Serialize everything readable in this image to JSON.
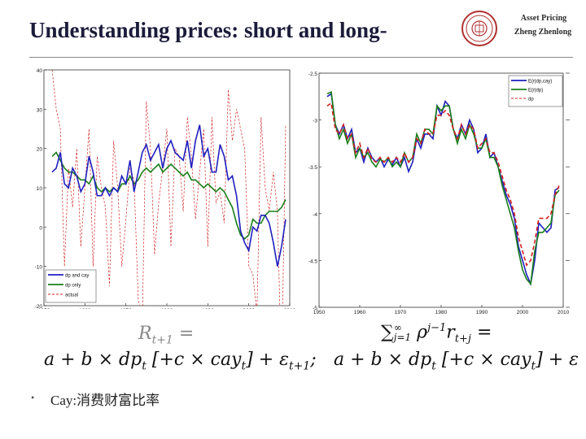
{
  "slide": {
    "title": "Understanding prices: short and long-",
    "brand_line1": "Asset Pricing",
    "brand_line2": "Zheng Zhenlong",
    "bullet": "Cay:消费财富比率"
  },
  "formulas": {
    "left_lhs": "R",
    "left_lhs_sub": "t+1",
    "left_eq": "=",
    "left_rhs_main": "a + b × dp",
    "left_rhs_sub": "t",
    "left_bracket": "[+c × cay",
    "left_bracket_sub": "t",
    "left_bracket_close": "]",
    "left_tail": "+ ε",
    "left_tail_sub": "t+1",
    "left_tail_end": ";",
    "right_sum": "∑",
    "right_sum_sup": "∞",
    "right_sum_sub": "j=1",
    "right_rho": "ρ",
    "right_rho_sup": "j−1",
    "right_r": "r",
    "right_r_sub": "t+j",
    "right_eq": "=",
    "right_rhs_main": "a + b × dp",
    "right_rhs_sub": "t",
    "right_bracket": "[+c × cay",
    "right_bracket_sub": "t",
    "right_bracket_close": "]",
    "right_tail": "+ ε"
  },
  "colors": {
    "blue": "#1f1fbf",
    "green": "#1a7f1a",
    "red": "#d42020"
  },
  "chart_data": [
    {
      "type": "line",
      "title": "",
      "xlabel": "",
      "ylabel": "",
      "xlim": [
        1950,
        2010
      ],
      "ylim": [
        -20,
        40
      ],
      "x_ticks": [
        1950,
        1960,
        1970,
        1980,
        1990,
        2000,
        2010
      ],
      "y_ticks": [
        40,
        30,
        20,
        10,
        0,
        -10,
        -20
      ],
      "y_tick_labels": [
        "40",
        "30",
        "20",
        "10",
        "0",
        "-10",
        "-20"
      ],
      "legend_position": "bottom-left",
      "series": [
        {
          "name": "dp and cay",
          "color": "#1f1fbf",
          "style": "solid",
          "x": [
            1952,
            1953,
            1954,
            1955,
            1956,
            1957,
            1958,
            1959,
            1960,
            1961,
            1962,
            1963,
            1964,
            1965,
            1966,
            1967,
            1968,
            1969,
            1970,
            1971,
            1972,
            1973,
            1974,
            1975,
            1976,
            1977,
            1978,
            1979,
            1980,
            1981,
            1982,
            1983,
            1984,
            1985,
            1986,
            1987,
            1988,
            1989,
            1990,
            1991,
            1992,
            1993,
            1994,
            1995,
            1996,
            1997,
            1998,
            1999,
            2000,
            2001,
            2002,
            2003,
            2004,
            2005,
            2006,
            2007,
            2008,
            2009
          ],
          "y": [
            14,
            15,
            19,
            11,
            10,
            15,
            13,
            9,
            11,
            18,
            14,
            8,
            8,
            10,
            8,
            10,
            9,
            13,
            11,
            17,
            9,
            14,
            19,
            21,
            17,
            19,
            21,
            15,
            20,
            22,
            19,
            18,
            17,
            22,
            15,
            22,
            26,
            18,
            20,
            14,
            14,
            21,
            18,
            12,
            13,
            8,
            -1,
            -4,
            -6,
            0,
            -1,
            3,
            3,
            1,
            -4,
            -10,
            -5,
            2
          ]
        },
        {
          "name": "dp only",
          "color": "#1a7f1a",
          "style": "solid",
          "x": [
            1952,
            1953,
            1954,
            1955,
            1956,
            1957,
            1958,
            1959,
            1960,
            1961,
            1962,
            1963,
            1964,
            1965,
            1966,
            1967,
            1968,
            1969,
            1970,
            1971,
            1972,
            1973,
            1974,
            1975,
            1976,
            1977,
            1978,
            1979,
            1980,
            1981,
            1982,
            1983,
            1984,
            1985,
            1986,
            1987,
            1988,
            1989,
            1990,
            1991,
            1992,
            1993,
            1994,
            1995,
            1996,
            1997,
            1998,
            1999,
            2000,
            2001,
            2002,
            2003,
            2004,
            2005,
            2006,
            2007,
            2008,
            2009
          ],
          "y": [
            18,
            19,
            17,
            15,
            14,
            14,
            13,
            12,
            12,
            11,
            13,
            10,
            9,
            10,
            9,
            10,
            9,
            11,
            11,
            13,
            11,
            12,
            14,
            15,
            14,
            15,
            16,
            14,
            15,
            16,
            15,
            14,
            13,
            14,
            12,
            12,
            11,
            10,
            11,
            10,
            9,
            10,
            9,
            7,
            5,
            1,
            -2,
            -3,
            -2,
            2,
            1,
            1,
            3,
            4,
            4,
            4,
            5,
            7
          ]
        },
        {
          "name": "actual",
          "color": "#d42020",
          "style": "dashed",
          "x": [
            1952,
            1953,
            1954,
            1955,
            1956,
            1957,
            1958,
            1959,
            1960,
            1961,
            1962,
            1963,
            1964,
            1965,
            1966,
            1967,
            1968,
            1969,
            1970,
            1971,
            1972,
            1973,
            1974,
            1975,
            1976,
            1977,
            1978,
            1979,
            1980,
            1981,
            1982,
            1983,
            1984,
            1985,
            1986,
            1987,
            1988,
            1989,
            1990,
            1991,
            1992,
            1993,
            1994,
            1995,
            1996,
            1997,
            1998,
            1999,
            2000,
            2001,
            2002,
            2003,
            2004,
            2005,
            2006,
            2007,
            2008,
            2009
          ],
          "y": [
            40,
            30,
            25,
            -10,
            15,
            5,
            20,
            -5,
            10,
            25,
            -10,
            18,
            10,
            5,
            -15,
            22,
            10,
            -10,
            2,
            15,
            12,
            -18,
            -25,
            32,
            20,
            -7,
            6,
            15,
            25,
            -5,
            20,
            18,
            4,
            28,
            18,
            2,
            14,
            25,
            -5,
            28,
            6,
            9,
            1,
            35,
            22,
            30,
            25,
            20,
            -10,
            -12,
            -22,
            28,
            10,
            4,
            14,
            4,
            -38,
            26
          ]
        }
      ]
    },
    {
      "type": "line",
      "title": "",
      "xlabel": "",
      "ylabel": "",
      "xlim": [
        1950,
        2010
      ],
      "ylim": [
        -5,
        -2.5
      ],
      "x_ticks": [
        1950,
        1960,
        1970,
        1980,
        1990,
        2000,
        2010
      ],
      "y_ticks": [
        -2.5,
        -3,
        -3.5,
        -4,
        -4.5,
        -5
      ],
      "y_tick_labels": [
        "-2.5",
        "-3",
        "-3.5",
        "-4",
        "-4.5",
        "-5"
      ],
      "legend_position": "top-right",
      "series": [
        {
          "name": "E(r|dp,cay)",
          "color": "#1f1fbf",
          "style": "solid",
          "x": [
            1952,
            1953,
            1954,
            1955,
            1956,
            1957,
            1958,
            1959,
            1960,
            1961,
            1962,
            1963,
            1964,
            1965,
            1966,
            1967,
            1968,
            1969,
            1970,
            1971,
            1972,
            1973,
            1974,
            1975,
            1976,
            1977,
            1978,
            1979,
            1980,
            1981,
            1982,
            1983,
            1984,
            1985,
            1986,
            1987,
            1988,
            1989,
            1990,
            1991,
            1992,
            1993,
            1994,
            1995,
            1996,
            1997,
            1998,
            1999,
            2000,
            2001,
            2002,
            2003,
            2004,
            2005,
            2006,
            2007,
            2008,
            2009
          ],
          "y": [
            -2.75,
            -2.72,
            -3.05,
            -3.15,
            -3.05,
            -3.2,
            -3.1,
            -3.35,
            -3.3,
            -3.45,
            -3.3,
            -3.4,
            -3.45,
            -3.4,
            -3.5,
            -3.42,
            -3.48,
            -3.4,
            -3.5,
            -3.4,
            -3.55,
            -3.45,
            -3.2,
            -3.3,
            -3.15,
            -3.15,
            -3.2,
            -2.85,
            -2.95,
            -2.8,
            -2.85,
            -3.1,
            -3.2,
            -3.05,
            -3.15,
            -3.0,
            -3.1,
            -3.35,
            -3.3,
            -3.15,
            -3.4,
            -3.35,
            -3.5,
            -3.65,
            -3.8,
            -3.9,
            -4.05,
            -4.35,
            -4.5,
            -4.65,
            -4.75,
            -4.5,
            -4.1,
            -4.15,
            -4.2,
            -4.15,
            -3.75,
            -3.72
          ]
        },
        {
          "name": "E(r|dp)",
          "color": "#1a7f1a",
          "style": "solid",
          "x": [
            1952,
            1953,
            1954,
            1955,
            1956,
            1957,
            1958,
            1959,
            1960,
            1961,
            1962,
            1963,
            1964,
            1965,
            1966,
            1967,
            1968,
            1969,
            1970,
            1971,
            1972,
            1973,
            1974,
            1975,
            1976,
            1977,
            1978,
            1979,
            1980,
            1981,
            1982,
            1983,
            1984,
            1985,
            1986,
            1987,
            1988,
            1989,
            1990,
            1991,
            1992,
            1993,
            1994,
            1995,
            1996,
            1997,
            1998,
            1999,
            2000,
            2001,
            2002,
            2003,
            2004,
            2005,
            2006,
            2007,
            2008,
            2009
          ],
          "y": [
            -2.72,
            -2.7,
            -3.05,
            -3.2,
            -3.1,
            -3.25,
            -3.15,
            -3.4,
            -3.3,
            -3.4,
            -3.35,
            -3.45,
            -3.5,
            -3.42,
            -3.45,
            -3.4,
            -3.5,
            -3.45,
            -3.5,
            -3.35,
            -3.45,
            -3.4,
            -3.15,
            -3.25,
            -3.1,
            -3.1,
            -3.15,
            -2.85,
            -2.9,
            -2.85,
            -2.85,
            -3.1,
            -3.25,
            -3.1,
            -3.2,
            -3.05,
            -3.15,
            -3.3,
            -3.3,
            -3.2,
            -3.4,
            -3.4,
            -3.5,
            -3.7,
            -3.85,
            -4.0,
            -4.15,
            -4.4,
            -4.6,
            -4.7,
            -4.75,
            -4.4,
            -4.2,
            -4.2,
            -4.15,
            -4.1,
            -3.8,
            -3.75
          ]
        },
        {
          "name": "dp",
          "color": "#d42020",
          "style": "dashed",
          "x": [
            1952,
            1953,
            1954,
            1955,
            1956,
            1957,
            1958,
            1959,
            1960,
            1961,
            1962,
            1963,
            1964,
            1965,
            1966,
            1967,
            1968,
            1969,
            1970,
            1971,
            1972,
            1973,
            1974,
            1975,
            1976,
            1977,
            1978,
            1979,
            1980,
            1981,
            1982,
            1983,
            1984,
            1985,
            1986,
            1987,
            1988,
            1989,
            1990,
            1991,
            1992,
            1993,
            1994,
            1995,
            1996,
            1997,
            1998,
            1999,
            2000,
            2001,
            2002,
            2003,
            2004,
            2005,
            2006,
            2007,
            2008,
            2009
          ],
          "y": [
            -2.85,
            -2.82,
            -3.1,
            -3.15,
            -3.05,
            -3.2,
            -3.15,
            -3.35,
            -3.25,
            -3.4,
            -3.3,
            -3.42,
            -3.45,
            -3.4,
            -3.45,
            -3.4,
            -3.45,
            -3.4,
            -3.45,
            -3.35,
            -3.45,
            -3.4,
            -3.2,
            -3.25,
            -3.1,
            -3.15,
            -3.15,
            -2.95,
            -2.95,
            -2.9,
            -2.95,
            -3.1,
            -3.2,
            -3.05,
            -3.15,
            -3.05,
            -3.1,
            -3.3,
            -3.25,
            -3.2,
            -3.35,
            -3.35,
            -3.45,
            -3.6,
            -3.75,
            -3.85,
            -4.0,
            -4.25,
            -4.4,
            -4.55,
            -4.5,
            -4.3,
            -4.05,
            -4.05,
            -4.05,
            -4.0,
            -3.8,
            -3.7
          ]
        }
      ]
    }
  ]
}
